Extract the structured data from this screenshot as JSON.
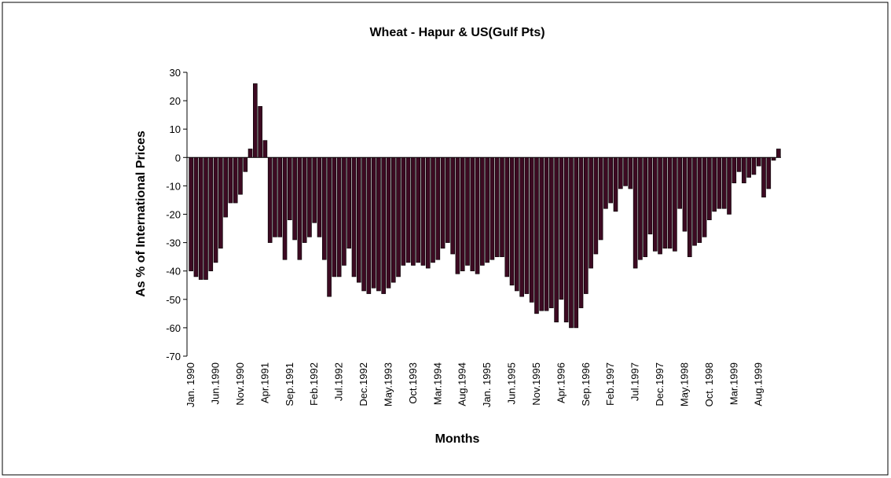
{
  "chart_data": {
    "type": "bar",
    "title": "Wheat - Hapur & US(Gulf Pts)",
    "x_label": "Months",
    "y_label": "As % of International Prices",
    "color": "#3d0a22",
    "categories": [
      "Jan. 1990",
      null,
      null,
      null,
      null,
      "Jun.1990",
      null,
      null,
      null,
      null,
      "Nov.1990",
      null,
      null,
      null,
      null,
      "Apr.1991",
      null,
      null,
      null,
      null,
      "Sep.1991",
      null,
      null,
      null,
      null,
      "Feb.1992",
      null,
      null,
      null,
      null,
      "Jul.1992",
      null,
      null,
      null,
      null,
      "Dec.1992",
      null,
      null,
      null,
      null,
      "May.1993",
      null,
      null,
      null,
      null,
      "Oct.1993",
      null,
      null,
      null,
      null,
      "Mar.1994",
      null,
      null,
      null,
      null,
      "Aug.1994",
      null,
      null,
      null,
      null,
      "Jan. 1995",
      null,
      null,
      null,
      null,
      "Jun.1995",
      null,
      null,
      null,
      null,
      "Nov.1995",
      null,
      null,
      null,
      null,
      "Apr.1996",
      null,
      null,
      null,
      null,
      "Sep.1996",
      null,
      null,
      null,
      null,
      "Feb.1997",
      null,
      null,
      null,
      null,
      "Jul.1997",
      null,
      null,
      null,
      null,
      "Dec.1997",
      null,
      null,
      null,
      null,
      "May.1998",
      null,
      null,
      null,
      null,
      "Oct. 1998",
      null,
      null,
      null,
      null,
      "Mar.1999",
      null,
      null,
      null,
      null,
      "Aug.1999",
      null,
      null,
      null,
      null
    ],
    "values": [
      -40,
      -42,
      -43,
      -43,
      -40,
      -37,
      -32,
      -21,
      -16,
      -16,
      -13,
      -5,
      3,
      26,
      18,
      6,
      -30,
      -28,
      -28,
      -36,
      -22,
      -29,
      -36,
      -30,
      -28,
      -23,
      -28,
      -36,
      -49,
      -42,
      -42,
      -38,
      -32,
      -42,
      -44,
      -47,
      -48,
      -46,
      -47,
      -48,
      -46,
      -44,
      -42,
      -38,
      -37,
      -38,
      -37,
      -38,
      -39,
      -37,
      -36,
      -32,
      -30,
      -34,
      -41,
      -40,
      -38,
      -40,
      -41,
      -38,
      -37,
      -36,
      -35,
      -35,
      -42,
      -45,
      -47,
      -49,
      -48,
      -51,
      -55,
      -54,
      -54,
      -53,
      -58,
      -50,
      -58,
      -60,
      -60,
      -53,
      -48,
      -39,
      -34,
      -29,
      -18,
      -16,
      -19,
      -11,
      -10,
      -11,
      -39,
      -36,
      -35,
      -27,
      -33,
      -34,
      -32,
      -32,
      -33,
      -18,
      -26,
      -35,
      -31,
      -30,
      -28,
      -22,
      -19,
      -18,
      -18,
      -20,
      -9,
      -5,
      -9,
      -7,
      -6,
      -3,
      -14,
      -11,
      -1,
      3
    ],
    "ylim": [
      -70,
      30
    ],
    "yticks": [
      -70,
      -60,
      -50,
      -40,
      -30,
      -20,
      -10,
      0,
      10,
      20,
      30
    ]
  }
}
